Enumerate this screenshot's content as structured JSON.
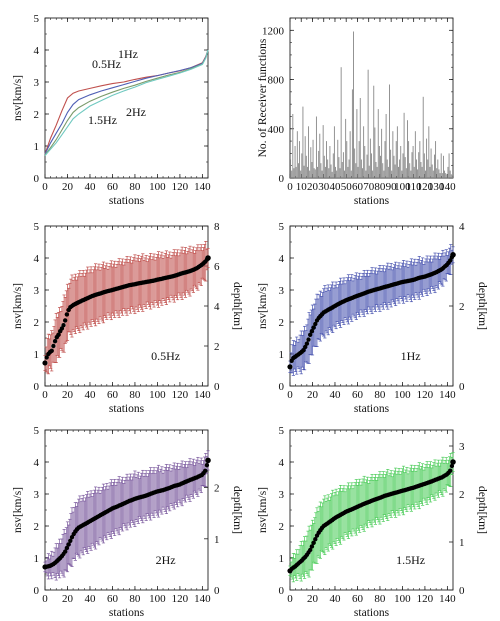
{
  "chart_data": [
    {
      "id": "p1",
      "type": "line",
      "xlabel": "stations",
      "ylabel": "nsv[km/s]",
      "xlim": [
        0,
        145
      ],
      "ylim": [
        0,
        5
      ],
      "xticks": [
        "0",
        "20",
        "40",
        "60",
        "80",
        "100",
        "120",
        "140"
      ],
      "yticks": [
        "0",
        "1",
        "2",
        "3",
        "4",
        "5"
      ],
      "annotations": [
        "1Hz",
        "0.5Hz",
        "2Hz",
        "1.5Hz"
      ],
      "series": [
        {
          "color": "#c0504d",
          "x": [
            0,
            5,
            10,
            15,
            20,
            25,
            30,
            40,
            50,
            60,
            70,
            80,
            90,
            100,
            110,
            120,
            130,
            140,
            143,
            145
          ],
          "y": [
            0.75,
            1.25,
            1.65,
            2.1,
            2.5,
            2.65,
            2.72,
            2.8,
            2.88,
            2.95,
            3.0,
            3.08,
            3.15,
            3.2,
            3.28,
            3.35,
            3.45,
            3.6,
            3.8,
            4.0
          ]
        },
        {
          "color": "#4f5fb5",
          "x": [
            0,
            5,
            10,
            15,
            20,
            25,
            30,
            40,
            50,
            60,
            70,
            80,
            90,
            100,
            110,
            120,
            130,
            140,
            143,
            145
          ],
          "y": [
            0.75,
            1.1,
            1.4,
            1.7,
            2.05,
            2.3,
            2.45,
            2.6,
            2.72,
            2.82,
            2.92,
            3.02,
            3.12,
            3.2,
            3.28,
            3.36,
            3.45,
            3.58,
            3.78,
            4.0
          ]
        },
        {
          "color": "#7a9a6a",
          "x": [
            0,
            5,
            10,
            15,
            20,
            25,
            30,
            40,
            50,
            60,
            70,
            80,
            90,
            100,
            110,
            120,
            130,
            140,
            143,
            145
          ],
          "y": [
            0.72,
            0.95,
            1.2,
            1.5,
            1.8,
            2.05,
            2.2,
            2.4,
            2.55,
            2.68,
            2.8,
            2.9,
            3.02,
            3.12,
            3.22,
            3.3,
            3.42,
            3.56,
            3.76,
            4.0
          ]
        },
        {
          "color": "#70c9c0",
          "x": [
            0,
            5,
            10,
            15,
            20,
            25,
            30,
            40,
            50,
            60,
            70,
            80,
            90,
            100,
            110,
            120,
            130,
            140,
            143,
            145
          ],
          "y": [
            0.7,
            0.9,
            1.1,
            1.35,
            1.6,
            1.85,
            2.0,
            2.25,
            2.42,
            2.58,
            2.72,
            2.84,
            2.98,
            3.08,
            3.18,
            3.28,
            3.4,
            3.55,
            3.75,
            4.0
          ]
        }
      ]
    },
    {
      "id": "p2",
      "type": "bar",
      "xlabel": "stations",
      "ylabel": "No. of Receiver functions",
      "xlim": [
        0,
        145
      ],
      "ylim": [
        0,
        1300
      ],
      "xticks": [
        "0",
        "10",
        "20",
        "30",
        "40",
        "50",
        "60",
        "70",
        "80",
        "90",
        "100",
        "110",
        "120",
        "130",
        "140"
      ],
      "yticks": [
        "0",
        "400",
        "800",
        "1200"
      ],
      "color": "#888888",
      "values": [
        150,
        60,
        520,
        80,
        260,
        90,
        380,
        120,
        300,
        60,
        200,
        580,
        100,
        340,
        180,
        90,
        420,
        60,
        250,
        130,
        310,
        80,
        70,
        500,
        90,
        220,
        360,
        120,
        60,
        430,
        180,
        90,
        300,
        150,
        80,
        260,
        110,
        50,
        200,
        420,
        90,
        60,
        310,
        170,
        80,
        900,
        130,
        210,
        60,
        480,
        300,
        90,
        150,
        380,
        60,
        720,
        1190,
        240,
        120,
        560,
        90,
        300,
        650,
        150,
        80,
        420,
        260,
        60,
        190,
        880,
        100,
        320,
        200,
        60,
        750,
        410,
        130,
        90,
        560,
        260,
        180,
        400,
        120,
        60,
        300,
        520,
        150,
        90,
        760,
        230,
        60,
        380,
        180,
        110,
        300,
        420,
        90,
        150,
        260,
        60,
        200,
        530,
        170,
        80,
        470,
        300,
        120,
        60,
        210,
        260,
        90,
        380,
        150,
        70,
        210,
        300,
        130,
        90,
        660,
        200,
        60,
        320,
        150,
        420,
        90,
        240,
        110,
        60,
        190,
        300,
        80,
        150,
        70,
        40,
        200,
        40,
        180,
        60,
        40,
        30,
        90,
        200,
        60,
        30,
        20
      ]
    },
    {
      "id": "p3",
      "type": "scatter",
      "xlabel": "stations",
      "ylabel": "nsv[km/s]",
      "y2label": "depth[km]",
      "xlim": [
        0,
        145
      ],
      "ylim": [
        0,
        5
      ],
      "y2ticks": [
        "0",
        "2",
        "4",
        "6",
        "8"
      ],
      "y2ticks_at": [
        0,
        1.25,
        2.5,
        3.75,
        5
      ],
      "xticks": [
        "0",
        "20",
        "40",
        "60",
        "80",
        "100",
        "120",
        "140"
      ],
      "yticks": [
        "0",
        "1",
        "2",
        "3",
        "4",
        "5"
      ],
      "annotation": "0.5Hz",
      "error_color": "#c0504d",
      "points": [
        [
          0,
          0.72
        ],
        [
          2,
          0.95
        ],
        [
          4,
          1.05
        ],
        [
          6,
          1.1
        ],
        [
          8,
          1.3
        ],
        [
          10,
          1.5
        ],
        [
          12,
          1.6
        ],
        [
          14,
          1.75
        ],
        [
          16,
          1.85
        ],
        [
          18,
          2.05
        ],
        [
          20,
          2.3
        ],
        [
          22,
          2.45
        ],
        [
          24,
          2.5
        ],
        [
          26,
          2.55
        ],
        [
          28,
          2.58
        ],
        [
          30,
          2.62
        ],
        [
          35,
          2.7
        ],
        [
          40,
          2.78
        ],
        [
          45,
          2.85
        ],
        [
          50,
          2.9
        ],
        [
          55,
          2.96
        ],
        [
          60,
          3.0
        ],
        [
          65,
          3.05
        ],
        [
          70,
          3.1
        ],
        [
          75,
          3.15
        ],
        [
          80,
          3.18
        ],
        [
          85,
          3.22
        ],
        [
          90,
          3.25
        ],
        [
          95,
          3.28
        ],
        [
          100,
          3.32
        ],
        [
          105,
          3.36
        ],
        [
          110,
          3.4
        ],
        [
          115,
          3.44
        ],
        [
          120,
          3.5
        ],
        [
          125,
          3.55
        ],
        [
          130,
          3.6
        ],
        [
          135,
          3.68
        ],
        [
          140,
          3.8
        ],
        [
          143,
          3.9
        ],
        [
          145,
          4.0
        ]
      ],
      "errors": [
        0.35,
        0.5,
        0.5,
        0.55,
        0.6,
        0.65,
        0.7,
        0.7,
        0.75,
        0.8,
        0.8,
        0.8,
        0.85,
        0.85,
        0.85,
        0.85,
        0.85,
        0.85,
        0.85,
        0.85,
        0.8,
        0.8,
        0.8,
        0.8,
        0.8,
        0.8,
        0.8,
        0.75,
        0.75,
        0.75,
        0.75,
        0.7,
        0.7,
        0.7,
        0.7,
        0.65,
        0.6,
        0.55,
        0.5,
        0.3
      ]
    },
    {
      "id": "p4",
      "type": "scatter",
      "xlabel": "stations",
      "ylabel": "nsv[km/s]",
      "y2label": "depth[km]",
      "xlim": [
        0,
        145
      ],
      "ylim": [
        0,
        5
      ],
      "y2ticks": [
        "0",
        "2",
        "4"
      ],
      "y2ticks_at": [
        0,
        2.5,
        5
      ],
      "xticks": [
        "0",
        "20",
        "40",
        "60",
        "80",
        "100",
        "120",
        "140"
      ],
      "yticks": [
        "0",
        "1",
        "2",
        "3",
        "4",
        "5"
      ],
      "annotation": "1Hz",
      "error_color": "#4a55b0",
      "points": [
        [
          0,
          0.6
        ],
        [
          2,
          0.85
        ],
        [
          4,
          0.9
        ],
        [
          6,
          0.95
        ],
        [
          8,
          1.0
        ],
        [
          10,
          1.05
        ],
        [
          12,
          1.12
        ],
        [
          14,
          1.25
        ],
        [
          16,
          1.4
        ],
        [
          18,
          1.6
        ],
        [
          20,
          1.75
        ],
        [
          22,
          1.9
        ],
        [
          24,
          2.05
        ],
        [
          26,
          2.15
        ],
        [
          28,
          2.22
        ],
        [
          30,
          2.3
        ],
        [
          35,
          2.4
        ],
        [
          40,
          2.5
        ],
        [
          45,
          2.6
        ],
        [
          50,
          2.68
        ],
        [
          55,
          2.75
        ],
        [
          60,
          2.82
        ],
        [
          65,
          2.88
        ],
        [
          70,
          2.95
        ],
        [
          75,
          3.0
        ],
        [
          80,
          3.05
        ],
        [
          85,
          3.1
        ],
        [
          90,
          3.15
        ],
        [
          95,
          3.2
        ],
        [
          100,
          3.25
        ],
        [
          105,
          3.28
        ],
        [
          110,
          3.32
        ],
        [
          115,
          3.38
        ],
        [
          120,
          3.42
        ],
        [
          125,
          3.48
        ],
        [
          130,
          3.55
        ],
        [
          135,
          3.65
        ],
        [
          140,
          3.8
        ],
        [
          143,
          3.95
        ],
        [
          145,
          4.1
        ]
      ],
      "errors": [
        0.3,
        0.4,
        0.45,
        0.5,
        0.5,
        0.55,
        0.6,
        0.6,
        0.65,
        0.7,
        0.7,
        0.7,
        0.7,
        0.7,
        0.7,
        0.7,
        0.7,
        0.65,
        0.65,
        0.65,
        0.65,
        0.6,
        0.6,
        0.6,
        0.6,
        0.6,
        0.6,
        0.6,
        0.55,
        0.55,
        0.55,
        0.55,
        0.55,
        0.5,
        0.5,
        0.5,
        0.45,
        0.4,
        0.35,
        0.25
      ]
    },
    {
      "id": "p5",
      "type": "scatter",
      "xlabel": "stations",
      "ylabel": "nsv[km/s]",
      "y2label": "depth[km]",
      "xlim": [
        0,
        145
      ],
      "ylim": [
        0,
        5
      ],
      "y2ticks": [
        "0",
        "1",
        "2"
      ],
      "y2ticks_at": [
        0,
        1.6,
        3.2
      ],
      "xticks": [
        "0",
        "20",
        "40",
        "60",
        "80",
        "100",
        "120",
        "140"
      ],
      "yticks": [
        "0",
        "1",
        "2",
        "3",
        "4",
        "5"
      ],
      "annotation": "2Hz",
      "error_color": "#7b5a9e",
      "points": [
        [
          0,
          0.72
        ],
        [
          2,
          0.73
        ],
        [
          4,
          0.75
        ],
        [
          6,
          0.78
        ],
        [
          8,
          0.82
        ],
        [
          10,
          0.88
        ],
        [
          12,
          0.95
        ],
        [
          14,
          1.02
        ],
        [
          16,
          1.1
        ],
        [
          18,
          1.2
        ],
        [
          20,
          1.35
        ],
        [
          22,
          1.5
        ],
        [
          24,
          1.65
        ],
        [
          26,
          1.78
        ],
        [
          28,
          1.88
        ],
        [
          30,
          1.95
        ],
        [
          35,
          2.05
        ],
        [
          40,
          2.15
        ],
        [
          45,
          2.25
        ],
        [
          50,
          2.35
        ],
        [
          55,
          2.45
        ],
        [
          60,
          2.55
        ],
        [
          65,
          2.62
        ],
        [
          70,
          2.7
        ],
        [
          75,
          2.78
        ],
        [
          80,
          2.85
        ],
        [
          85,
          2.9
        ],
        [
          90,
          2.95
        ],
        [
          95,
          3.02
        ],
        [
          100,
          3.08
        ],
        [
          105,
          3.12
        ],
        [
          110,
          3.18
        ],
        [
          115,
          3.25
        ],
        [
          120,
          3.3
        ],
        [
          125,
          3.38
        ],
        [
          130,
          3.45
        ],
        [
          135,
          3.52
        ],
        [
          140,
          3.6
        ],
        [
          143,
          3.75
        ],
        [
          145,
          4.05
        ]
      ],
      "errors": [
        0.2,
        0.25,
        0.3,
        0.35,
        0.4,
        0.45,
        0.5,
        0.55,
        0.6,
        0.65,
        0.7,
        0.75,
        0.8,
        0.8,
        0.85,
        0.85,
        0.85,
        0.85,
        0.85,
        0.8,
        0.8,
        0.8,
        0.8,
        0.75,
        0.75,
        0.75,
        0.7,
        0.7,
        0.7,
        0.7,
        0.65,
        0.65,
        0.6,
        0.6,
        0.55,
        0.55,
        0.5,
        0.45,
        0.4,
        0.3
      ]
    },
    {
      "id": "p6",
      "type": "scatter",
      "xlabel": "stations",
      "ylabel": "nsv[km/s]",
      "y2label": "depth[km]",
      "xlim": [
        0,
        145
      ],
      "ylim": [
        0,
        5
      ],
      "y2ticks": [
        "0",
        "1",
        "2",
        "3"
      ],
      "y2ticks_at": [
        0,
        1.5,
        3.0,
        4.5
      ],
      "xticks": [
        "0",
        "20",
        "40",
        "60",
        "80",
        "100",
        "120",
        "140"
      ],
      "yticks": [
        "0",
        "1",
        "2",
        "3",
        "4",
        "5"
      ],
      "annotation": "1.5Hz",
      "error_color": "#4ccc5a",
      "points": [
        [
          0,
          0.6
        ],
        [
          2,
          0.68
        ],
        [
          4,
          0.72
        ],
        [
          6,
          0.78
        ],
        [
          8,
          0.85
        ],
        [
          10,
          0.9
        ],
        [
          12,
          0.98
        ],
        [
          14,
          1.05
        ],
        [
          16,
          1.15
        ],
        [
          18,
          1.25
        ],
        [
          20,
          1.4
        ],
        [
          22,
          1.55
        ],
        [
          24,
          1.7
        ],
        [
          26,
          1.82
        ],
        [
          28,
          1.92
        ],
        [
          30,
          2.0
        ],
        [
          35,
          2.12
        ],
        [
          40,
          2.25
        ],
        [
          45,
          2.35
        ],
        [
          50,
          2.45
        ],
        [
          55,
          2.52
        ],
        [
          60,
          2.6
        ],
        [
          65,
          2.68
        ],
        [
          70,
          2.75
        ],
        [
          75,
          2.82
        ],
        [
          80,
          2.88
        ],
        [
          85,
          2.95
        ],
        [
          90,
          3.0
        ],
        [
          95,
          3.05
        ],
        [
          100,
          3.1
        ],
        [
          105,
          3.15
        ],
        [
          110,
          3.2
        ],
        [
          115,
          3.26
        ],
        [
          120,
          3.32
        ],
        [
          125,
          3.38
        ],
        [
          130,
          3.45
        ],
        [
          135,
          3.52
        ],
        [
          140,
          3.62
        ],
        [
          143,
          3.75
        ],
        [
          145,
          4.0
        ]
      ],
      "errors": [
        0.25,
        0.3,
        0.35,
        0.4,
        0.45,
        0.5,
        0.55,
        0.6,
        0.65,
        0.7,
        0.7,
        0.75,
        0.75,
        0.8,
        0.8,
        0.8,
        0.8,
        0.8,
        0.8,
        0.75,
        0.75,
        0.75,
        0.75,
        0.7,
        0.7,
        0.7,
        0.7,
        0.65,
        0.65,
        0.65,
        0.6,
        0.6,
        0.6,
        0.55,
        0.55,
        0.5,
        0.5,
        0.45,
        0.4,
        0.3
      ]
    }
  ]
}
